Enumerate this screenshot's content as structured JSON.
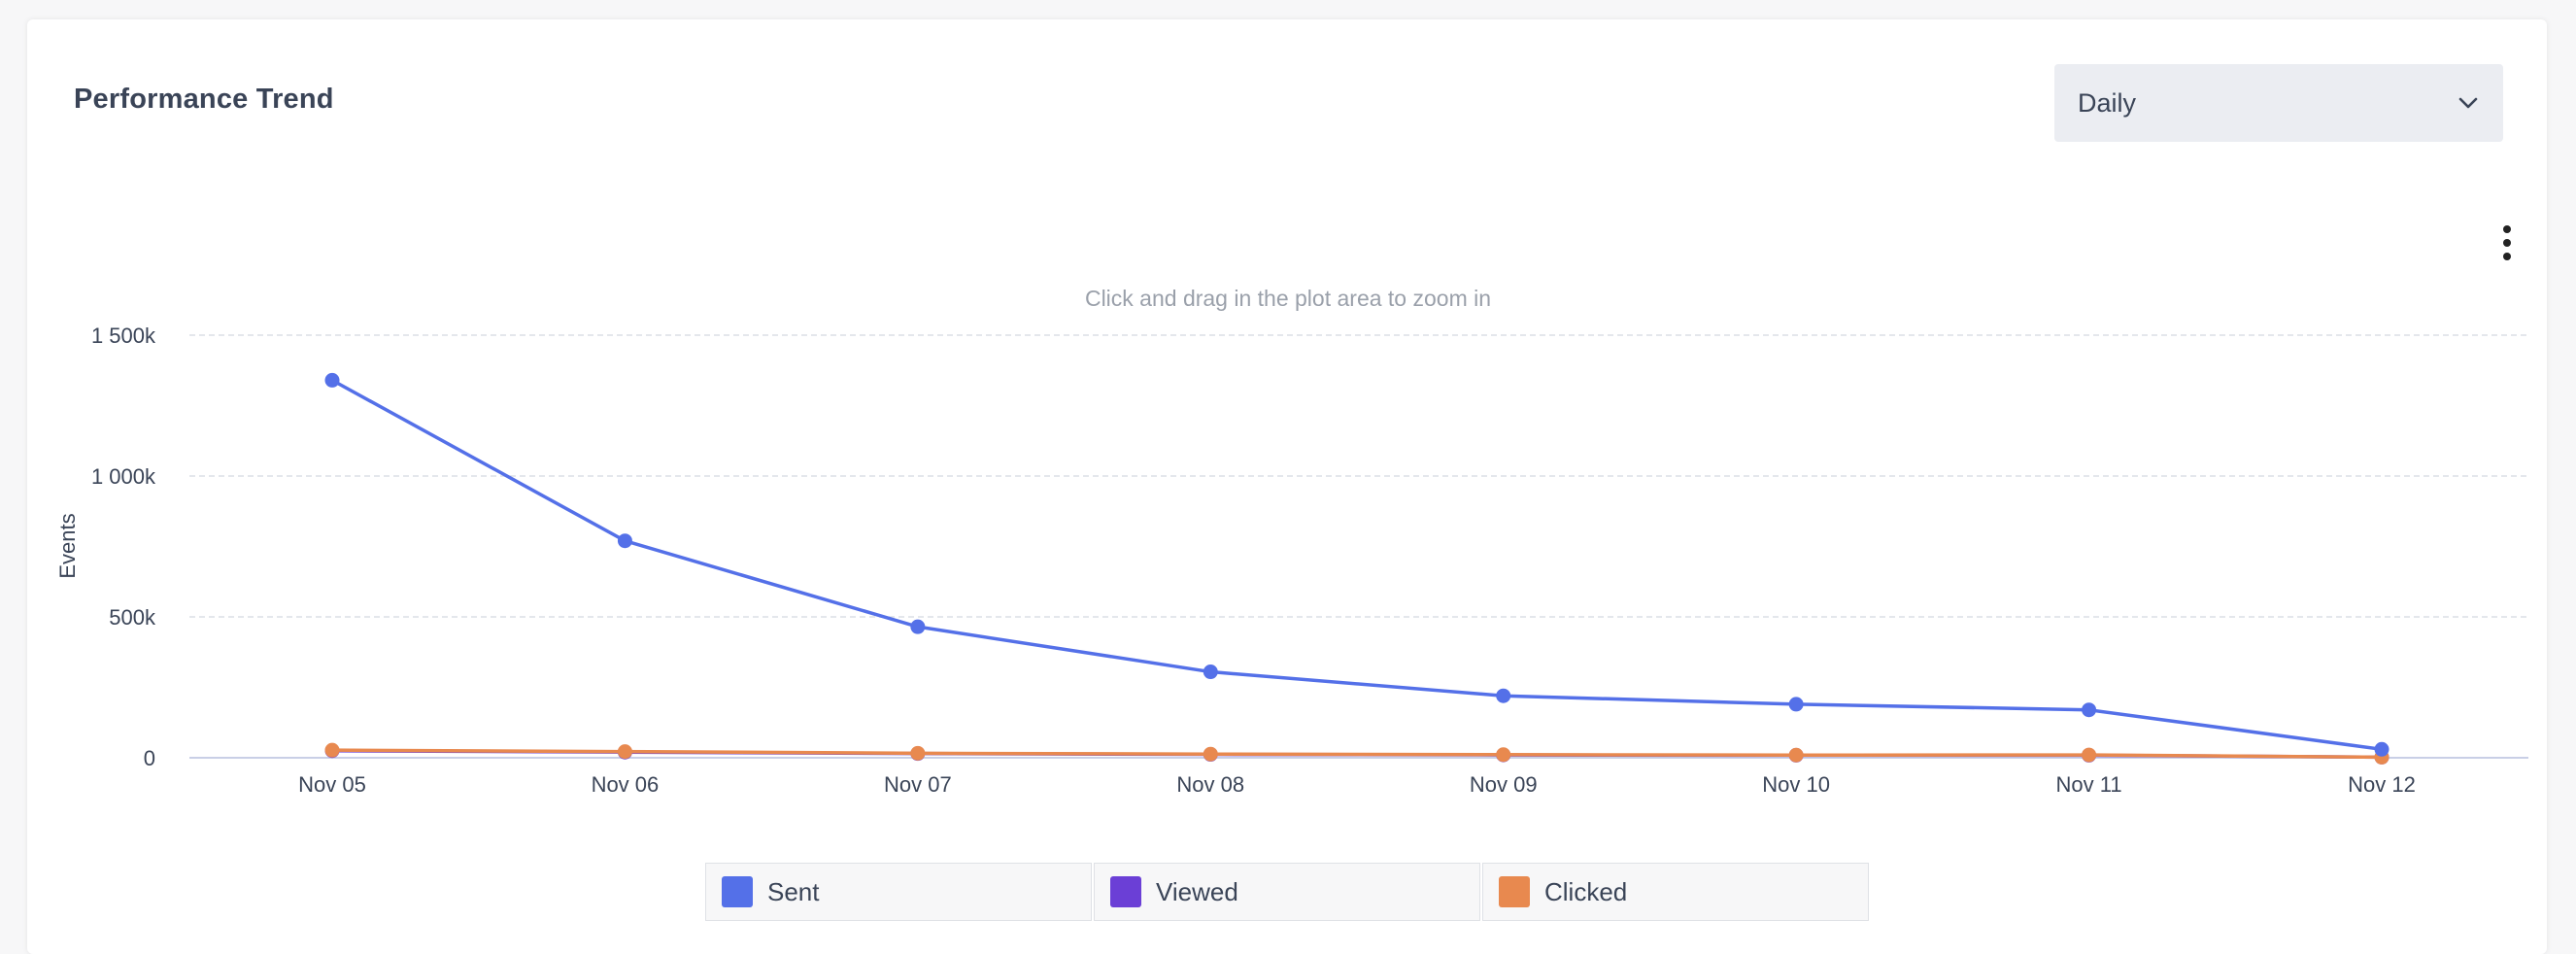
{
  "header": {
    "title": "Performance Trend"
  },
  "granularity_select": {
    "value": "Daily"
  },
  "chart_hint": "Click and drag in the plot area to zoom in",
  "chart_data": {
    "type": "line",
    "title": "",
    "xlabel": "",
    "ylabel": "Events",
    "categories": [
      "Nov 05",
      "Nov 06",
      "Nov 07",
      "Nov 08",
      "Nov 09",
      "Nov 10",
      "Nov 11",
      "Nov 12"
    ],
    "ylim": [
      0,
      1500000
    ],
    "yticks": [
      {
        "value": 0,
        "label": "0"
      },
      {
        "value": 500000,
        "label": "500k"
      },
      {
        "value": 1000000,
        "label": "1 000k"
      },
      {
        "value": 1500000,
        "label": "1 500k"
      }
    ],
    "grid": true,
    "legend_position": "bottom",
    "series": [
      {
        "name": "Sent",
        "color": "#5470e8",
        "values": [
          1340000,
          770000,
          465000,
          305000,
          220000,
          190000,
          170000,
          30000
        ]
      },
      {
        "name": "Viewed",
        "color": "#6b3fd6",
        "values": [
          25000,
          20000,
          15000,
          12000,
          10000,
          9000,
          9000,
          2000
        ]
      },
      {
        "name": "Clicked",
        "color": "#e8894f",
        "values": [
          27000,
          22000,
          16000,
          13000,
          11000,
          9500,
          10000,
          2000
        ]
      }
    ]
  }
}
